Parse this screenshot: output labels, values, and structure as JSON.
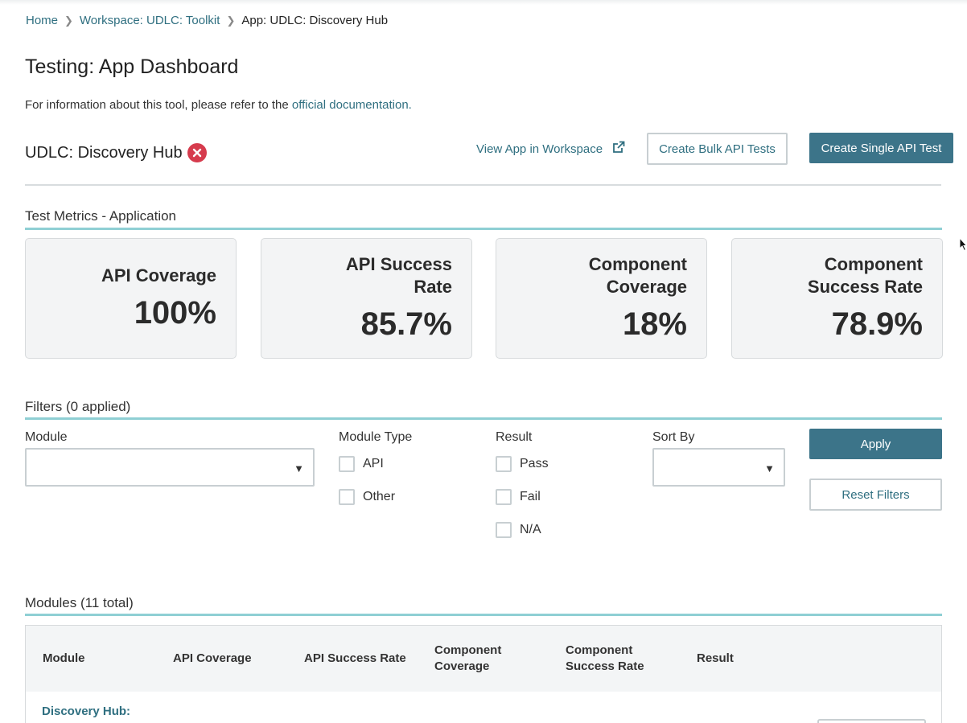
{
  "breadcrumb": {
    "items": [
      {
        "label": "Home"
      },
      {
        "label": "Workspace: UDLC: Toolkit"
      },
      {
        "label": "App: UDLC: Discovery Hub"
      }
    ]
  },
  "page": {
    "title": "Testing: App Dashboard",
    "info_prefix": "For information about this tool, please refer to the ",
    "info_link": "official documentation."
  },
  "app": {
    "name": "UDLC: Discovery Hub",
    "status_icon": "x-circle-icon",
    "view_app_label": "View App in Workspace",
    "bulk_button": "Create Bulk API Tests",
    "single_button": "Create Single API Test"
  },
  "metrics": {
    "section_title": "Test Metrics - Application",
    "cards": [
      {
        "label_line1": "API Coverage",
        "label_line2": "",
        "value": "100%"
      },
      {
        "label_line1": "API Success",
        "label_line2": "Rate",
        "value": "85.7%"
      },
      {
        "label_line1": "Component",
        "label_line2": "Coverage",
        "value": "18%"
      },
      {
        "label_line1": "Component",
        "label_line2": "Success Rate",
        "value": "78.9%"
      }
    ]
  },
  "filters": {
    "section_title": "Filters (0 applied)",
    "module_label": "Module",
    "module_type_label": "Module Type",
    "module_type_options": [
      "API",
      "Other"
    ],
    "result_label": "Result",
    "result_options": [
      "Pass",
      "Fail",
      "N/A"
    ],
    "sort_by_label": "Sort By",
    "apply_button": "Apply",
    "reset_button": "Reset Filters"
  },
  "modules": {
    "section_title": "Modules (11 total)",
    "columns": [
      {
        "line1": "Module",
        "line2": ""
      },
      {
        "line1": "API Coverage",
        "line2": ""
      },
      {
        "line1": "API Success Rate",
        "line2": ""
      },
      {
        "line1": "Component",
        "line2": "Coverage"
      },
      {
        "line1": "Component",
        "line2": "Success Rate"
      },
      {
        "line1": "Result",
        "line2": ""
      }
    ],
    "first_row_module": "Discovery Hub:"
  },
  "colors": {
    "primary": "#3c7489",
    "link": "#2f6f80",
    "teal_rule": "#8fcfd4",
    "error": "#d63b4d"
  }
}
